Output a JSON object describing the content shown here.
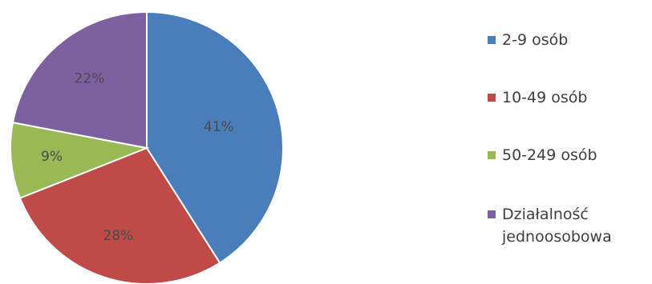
{
  "chart_data": {
    "type": "pie",
    "title": "",
    "categories": [
      "2-9 osób",
      "10-49 osób",
      "50-249 osób",
      "Działalność jednoosobowa"
    ],
    "values": [
      41,
      28,
      9,
      22
    ],
    "labels": [
      "41%",
      "28%",
      "9%",
      "22%"
    ],
    "colors": [
      "#4a7ebb",
      "#be4b48",
      "#98b954",
      "#7d60a0"
    ],
    "start_angle_deg": 0,
    "direction": "clockwise",
    "legend_position": "right"
  },
  "legend": {
    "items": [
      {
        "label": "2-9 osób",
        "color": "#4a7ebb"
      },
      {
        "label": "10-49 osób",
        "color": "#be4b48"
      },
      {
        "label": "50-249 osób",
        "color": "#98b954"
      },
      {
        "label": "Działalność jednoosobowa",
        "color": "#7d60a0"
      }
    ]
  }
}
